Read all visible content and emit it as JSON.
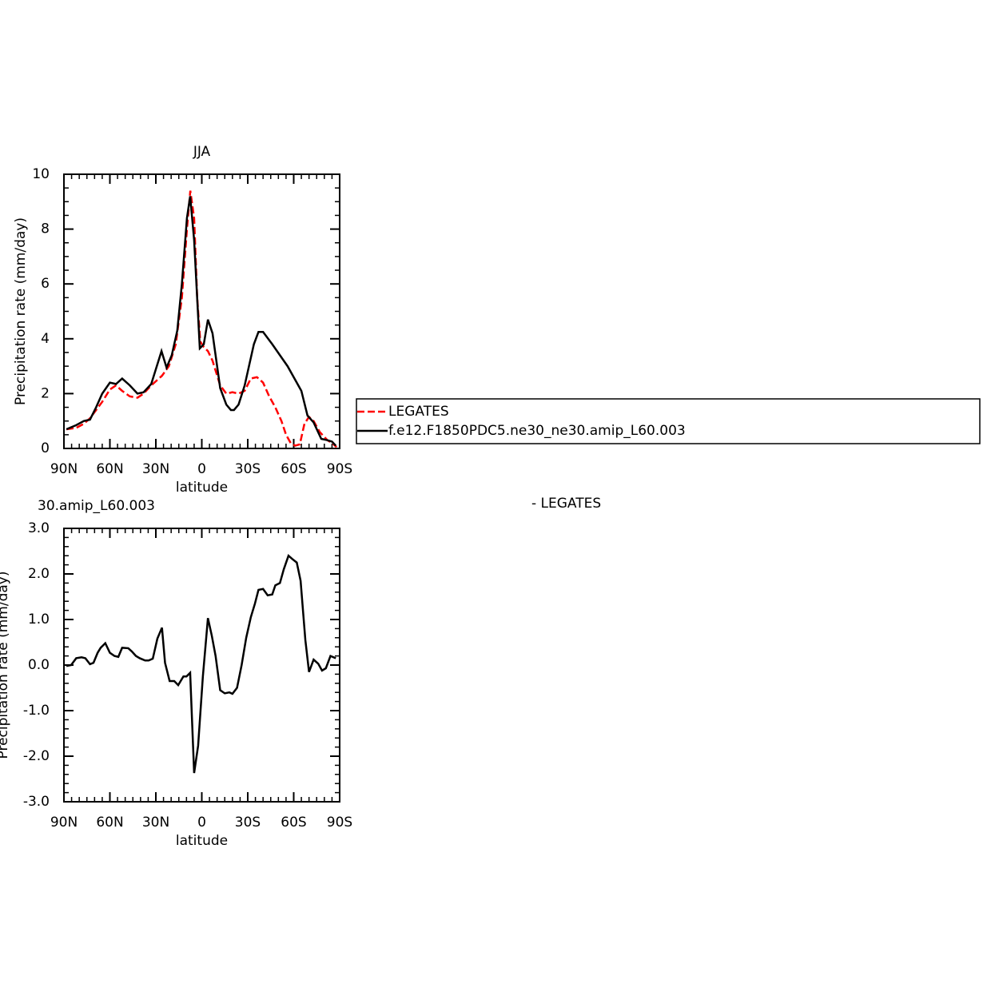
{
  "chart_data": [
    {
      "type": "line",
      "title": "JJA",
      "xlabel": "latitude",
      "ylabel": "Precipitation rate (mm/day)",
      "xlim": [
        90,
        -90
      ],
      "xticks": [
        {
          "value": 90,
          "label": "90N"
        },
        {
          "value": 60,
          "label": "60N"
        },
        {
          "value": 30,
          "label": "30N"
        },
        0,
        {
          "value": -30,
          "label": "30S"
        },
        {
          "value": -60,
          "label": "60S"
        },
        {
          "value": -90,
          "label": "90S"
        }
      ],
      "ylim": [
        0,
        10
      ],
      "yticks": [
        0,
        2,
        4,
        6,
        8,
        10
      ],
      "legend": "right",
      "series": [
        {
          "name": "LEGATES",
          "color": "#ff0000",
          "dash": true,
          "x": [
            88.4,
            82,
            77,
            73,
            69,
            65,
            60,
            56,
            52,
            47,
            42,
            38,
            33,
            26,
            21.5,
            17,
            13,
            9.7,
            7.5,
            5,
            3,
            1,
            -1.3,
            -4,
            -7,
            -12,
            -16,
            -20,
            -24,
            -28,
            -32,
            -36,
            -40,
            -44,
            -48,
            -52,
            -55,
            -58,
            -61,
            -64,
            -67,
            -70,
            -73,
            -77,
            -82,
            -85,
            -88
          ],
          "values": [
            0.7,
            0.75,
            0.9,
            1.1,
            1.4,
            1.7,
            2.15,
            2.3,
            2.1,
            1.9,
            1.85,
            2.0,
            2.3,
            2.65,
            3.0,
            3.8,
            5.5,
            8.0,
            9.4,
            8.4,
            5.5,
            3.9,
            3.7,
            3.55,
            3.2,
            2.3,
            2.0,
            2.05,
            2.0,
            2.1,
            2.55,
            2.6,
            2.4,
            1.9,
            1.5,
            1.0,
            0.5,
            0.2,
            0.1,
            0.15,
            0.9,
            1.15,
            1.0,
            0.6,
            0.3,
            0.2,
            0.05
          ]
        },
        {
          "name": "f.e12.F1850PDC5.ne30_ne30.amip_L60.003",
          "color": "#000000",
          "dash": false,
          "x": [
            88.4,
            82,
            77,
            73,
            69,
            65,
            60,
            56,
            52,
            47,
            42,
            38,
            33,
            26.3,
            23,
            19.6,
            16,
            13,
            9.7,
            7.6,
            5,
            1.3,
            -1.3,
            -4,
            -7,
            -12,
            -16,
            -19,
            -21,
            -24,
            -28,
            -34,
            -37,
            -40,
            -46,
            -51,
            -56,
            -61,
            -65,
            -69,
            -73,
            -78,
            -82,
            -85,
            -87.5
          ],
          "values": [
            0.7,
            0.85,
            1.0,
            1.05,
            1.5,
            2.0,
            2.4,
            2.35,
            2.55,
            2.3,
            2.0,
            2.05,
            2.35,
            3.55,
            2.95,
            3.4,
            4.3,
            6.0,
            8.4,
            9.2,
            7.6,
            3.65,
            3.8,
            4.7,
            4.2,
            2.2,
            1.6,
            1.4,
            1.4,
            1.6,
            2.3,
            3.8,
            4.25,
            4.25,
            3.8,
            3.4,
            3.0,
            2.5,
            2.1,
            1.2,
            0.95,
            0.35,
            0.3,
            0.25,
            0.1
          ]
        }
      ]
    },
    {
      "type": "line",
      "title": "30.amip_L60.003",
      "subtitle": "- LEGATES",
      "xlabel": "latitude",
      "ylabel": "Precipitation rate (mm/day)",
      "xlim": [
        90,
        -90
      ],
      "xticks": [
        {
          "value": 90,
          "label": "90N"
        },
        {
          "value": 60,
          "label": "60N"
        },
        {
          "value": 30,
          "label": "30N"
        },
        0,
        {
          "value": -30,
          "label": "30S"
        },
        {
          "value": -60,
          "label": "60S"
        },
        {
          "value": -90,
          "label": "90S"
        }
      ],
      "ylim": [
        -3,
        3
      ],
      "yticks": [
        {
          "value": -3,
          "label": "-3.0"
        },
        {
          "value": -2,
          "label": "-2.0"
        },
        {
          "value": -1,
          "label": "-1.0"
        },
        {
          "value": 0,
          "label": "0.0"
        },
        {
          "value": 1,
          "label": "1.0"
        },
        {
          "value": 2,
          "label": "2.0"
        },
        {
          "value": 3,
          "label": "3.0"
        }
      ],
      "series": [
        {
          "color": "#000000",
          "dash": false,
          "x": [
            88.4,
            85.3,
            82,
            78.5,
            76,
            73,
            70.7,
            68,
            66,
            63,
            60,
            57,
            54.5,
            52,
            48,
            45.7,
            43,
            40.5,
            37,
            34.7,
            32,
            29,
            26,
            24,
            21,
            18,
            15.4,
            12,
            10,
            7.6,
            5,
            2.4,
            -0.7,
            -4,
            -6.5,
            -9,
            -12,
            -15,
            -18,
            -20,
            -23,
            -26,
            -29,
            -32,
            -34.7,
            -37,
            -40,
            -43,
            -46,
            -48,
            -51,
            -53.5,
            -56.6,
            -59,
            -62,
            -64.5,
            -67.6,
            -70,
            -73,
            -76,
            -78.5,
            -81,
            -84,
            -87.5
          ],
          "values": [
            -0.02,
            0.0,
            0.15,
            0.17,
            0.15,
            0.02,
            0.05,
            0.27,
            0.38,
            0.48,
            0.27,
            0.2,
            0.18,
            0.38,
            0.37,
            0.3,
            0.2,
            0.15,
            0.1,
            0.1,
            0.14,
            0.58,
            0.82,
            0.05,
            -0.35,
            -0.35,
            -0.44,
            -0.25,
            -0.25,
            -0.17,
            -2.37,
            -1.77,
            -0.25,
            1.03,
            0.65,
            0.2,
            -0.55,
            -0.62,
            -0.6,
            -0.63,
            -0.5,
            0.0,
            0.6,
            1.05,
            1.35,
            1.65,
            1.67,
            1.53,
            1.55,
            1.75,
            1.8,
            2.1,
            2.4,
            2.33,
            2.25,
            1.85,
            0.55,
            -0.15,
            0.12,
            0.03,
            -0.12,
            -0.07,
            0.2,
            0.15
          ]
        }
      ]
    }
  ]
}
